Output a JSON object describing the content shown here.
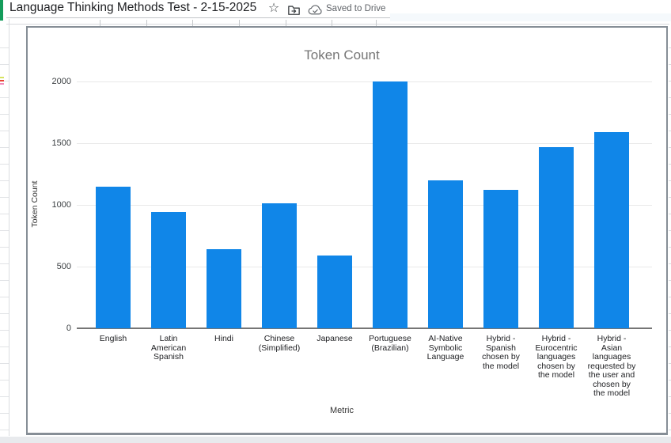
{
  "window": {
    "title": "Language Thinking Methods Test - 2-15-2025",
    "saved_status": "Saved to Drive"
  },
  "chart_data": {
    "type": "bar",
    "title": "Token Count",
    "xlabel": "Metric",
    "ylabel": "Token Count",
    "ylim": [
      0,
      2000
    ],
    "yticks": [
      0,
      500,
      1000,
      1500,
      2000
    ],
    "grid": true,
    "legend": "none",
    "bar_color": "#1086e8",
    "categories": [
      "English",
      "Latin American Spanish",
      "Hindi",
      "Chinese (Simplified)",
      "Japanese",
      "Portuguese (Brazilian)",
      "AI-Native Symbolic Language",
      "Hybrid - Spanish chosen by the model",
      "Hybrid - Eurocentric languages chosen by the model",
      "Hybrid - Asian languages requested by the user and chosen by the model"
    ],
    "category_lines": [
      [
        "English"
      ],
      [
        "Latin",
        "American",
        "Spanish"
      ],
      [
        "Hindi"
      ],
      [
        "Chinese",
        "(Simplified)"
      ],
      [
        "Japanese"
      ],
      [
        "Portuguese",
        "(Brazilian)"
      ],
      [
        "AI-Native",
        "Symbolic",
        "Language"
      ],
      [
        "Hybrid -",
        "Spanish",
        "chosen by",
        "the model"
      ],
      [
        "Hybrid -",
        "Eurocentric",
        "languages",
        "chosen by",
        "the model"
      ],
      [
        "Hybrid -",
        "Asian",
        "languages",
        "requested by",
        "the user and",
        "chosen by",
        "the model"
      ]
    ],
    "values": [
      1150,
      940,
      640,
      1010,
      590,
      2000,
      1200,
      1120,
      1470,
      1590
    ]
  }
}
